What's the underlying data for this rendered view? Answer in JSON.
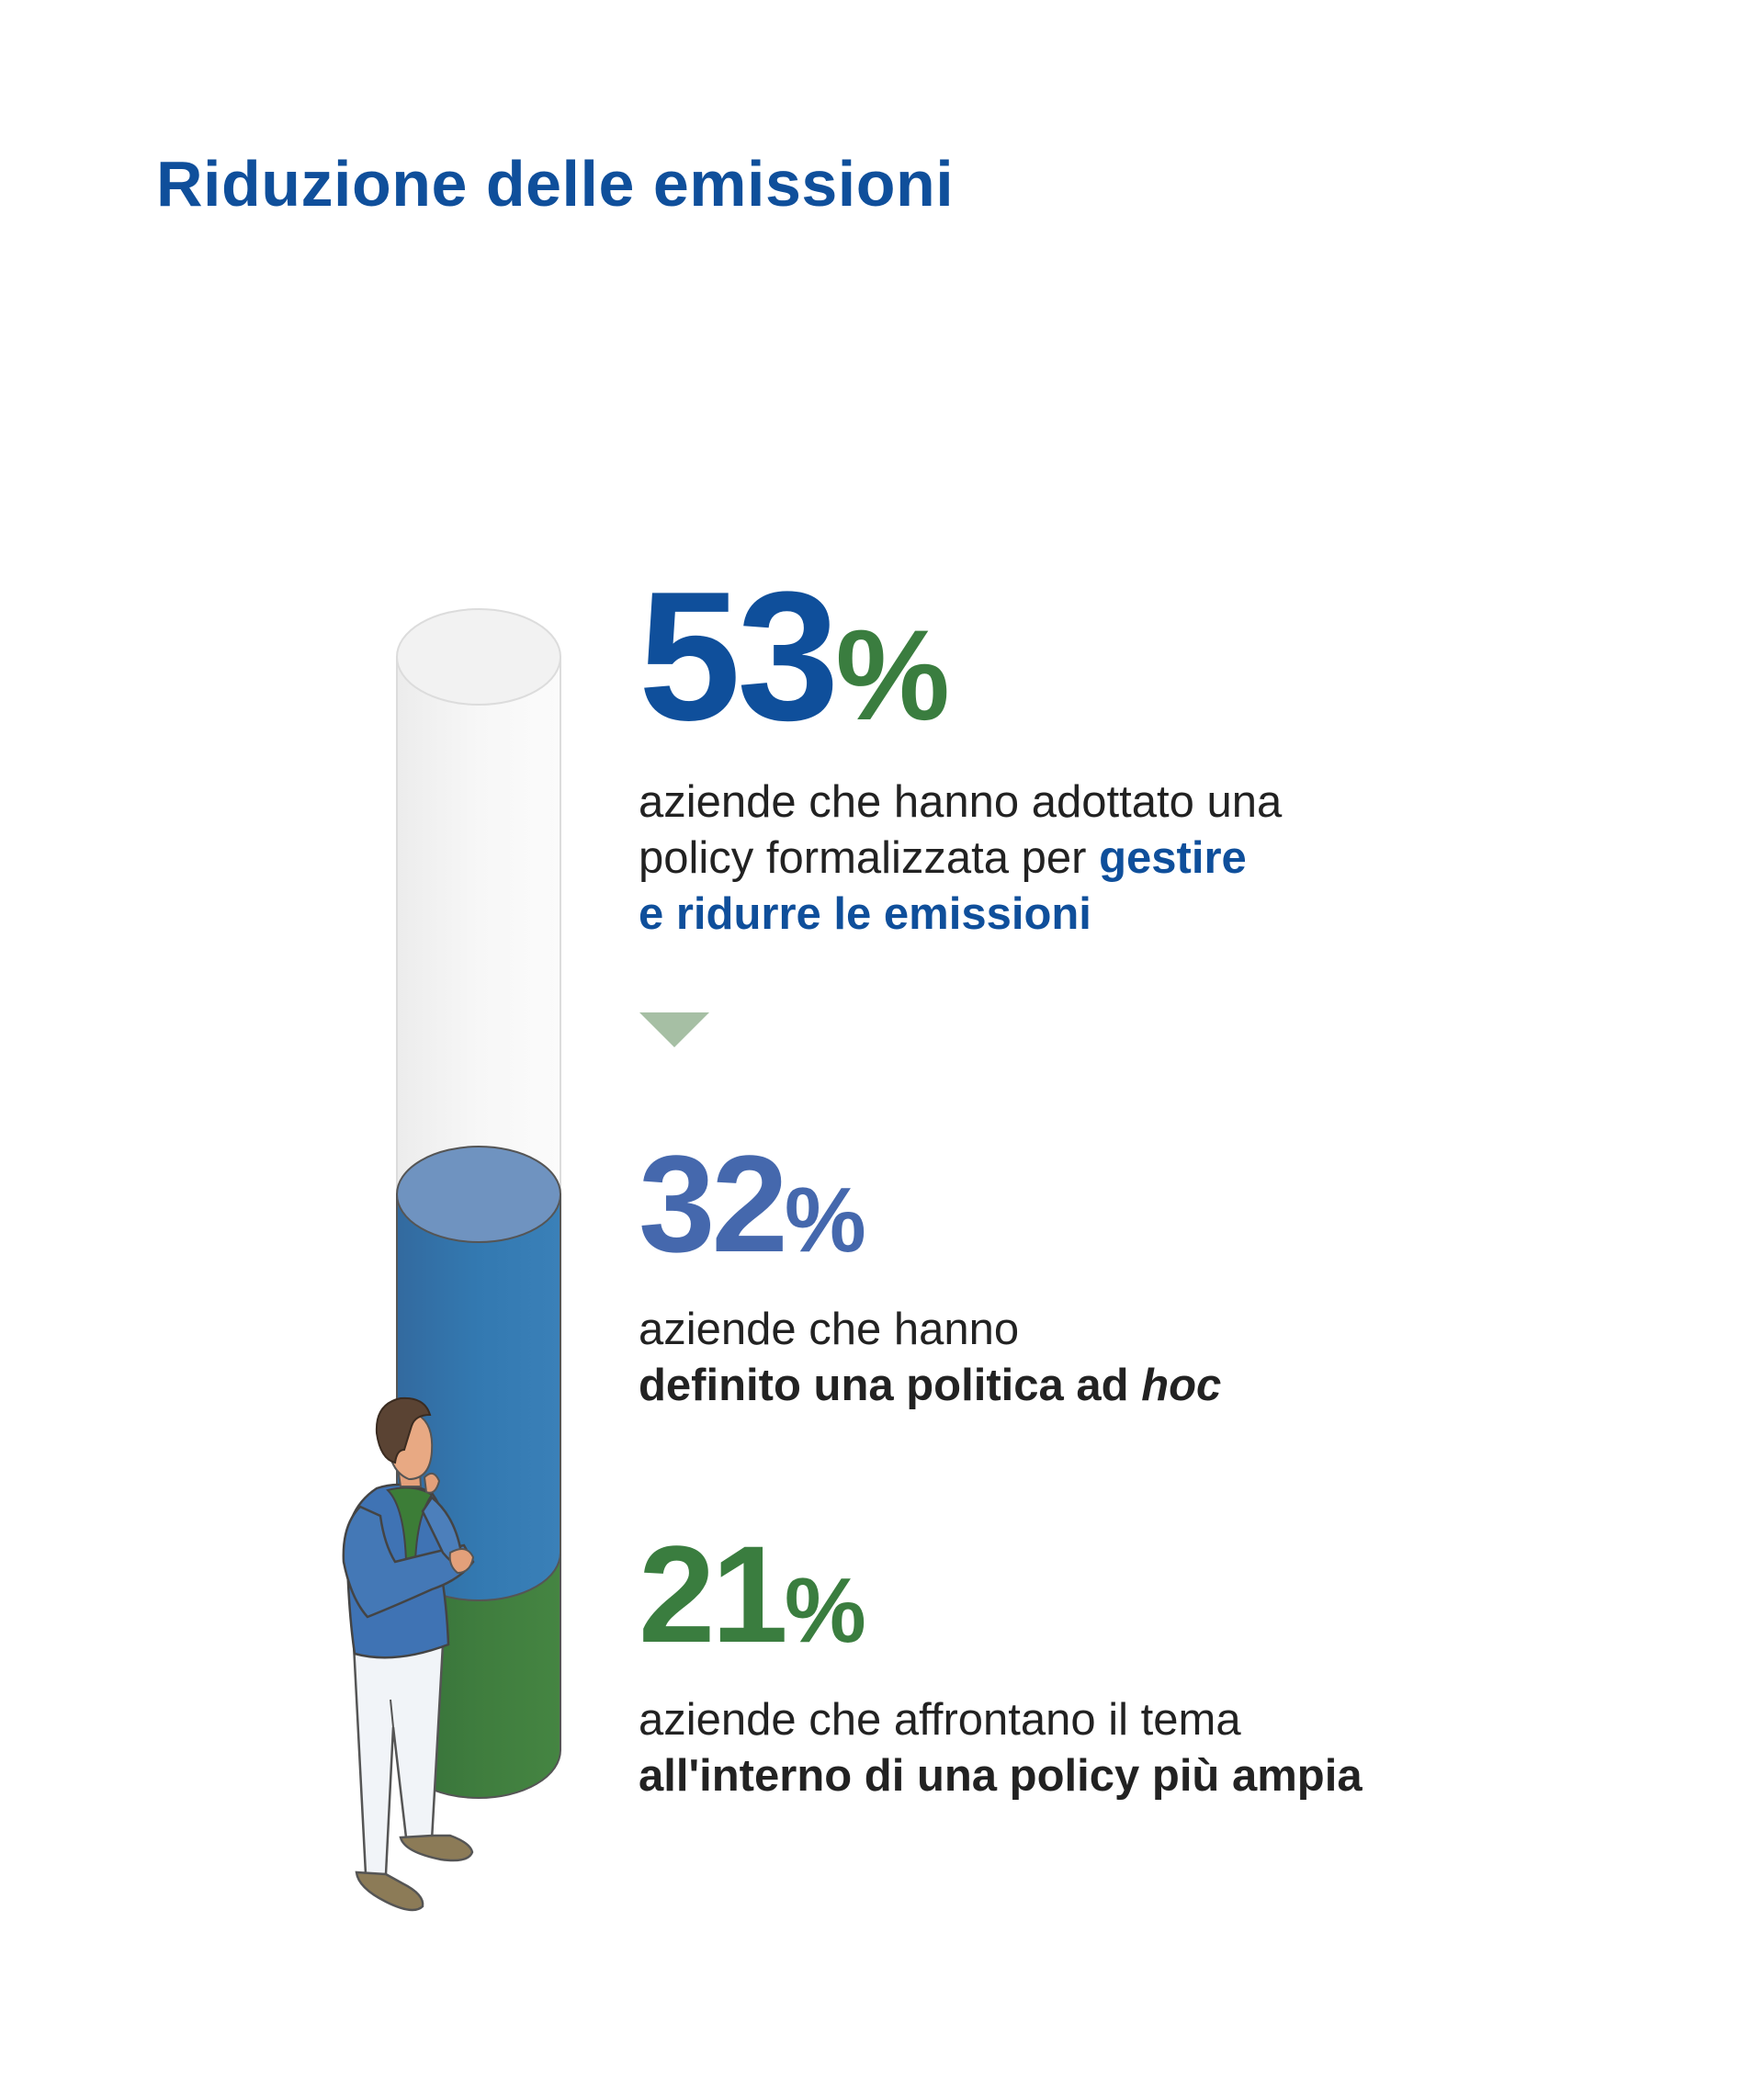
{
  "title": "Riduzione delle emissioni",
  "chart_data": {
    "type": "bar",
    "unit": "%",
    "values": [
      53,
      32,
      21
    ],
    "ylim": [
      0,
      100
    ]
  },
  "stats": [
    {
      "value": "53",
      "pct": "%",
      "line1": "aziende che hanno adottato una",
      "line2_plain": "policy formalizzata per ",
      "line2_bold": "gestire",
      "line3_bold": "e ridurre le emissioni"
    },
    {
      "value": "32",
      "pct": "%",
      "line1": "aziende che hanno",
      "line2_bold": "definito una politica ad ",
      "line2_italic": "hoc"
    },
    {
      "value": "21",
      "pct": "%",
      "line1": "aziende che affrontano il tema",
      "line2_bold": "all'interno di una policy più ampia"
    }
  ],
  "colors": {
    "title": "#0f4f9b",
    "stat1": "#0f4f9b",
    "stat2": "#4568ad",
    "stat3": "#3a7d3f",
    "cylinder_empty": "#f4f4f4",
    "cylinder_blue": "#3379b1",
    "cylinder_green": "#3f7d3e",
    "arrow": "#a6bfa4"
  },
  "icons": {
    "arrow": "triangle-down-icon",
    "person": "thinking-person-illustration"
  }
}
